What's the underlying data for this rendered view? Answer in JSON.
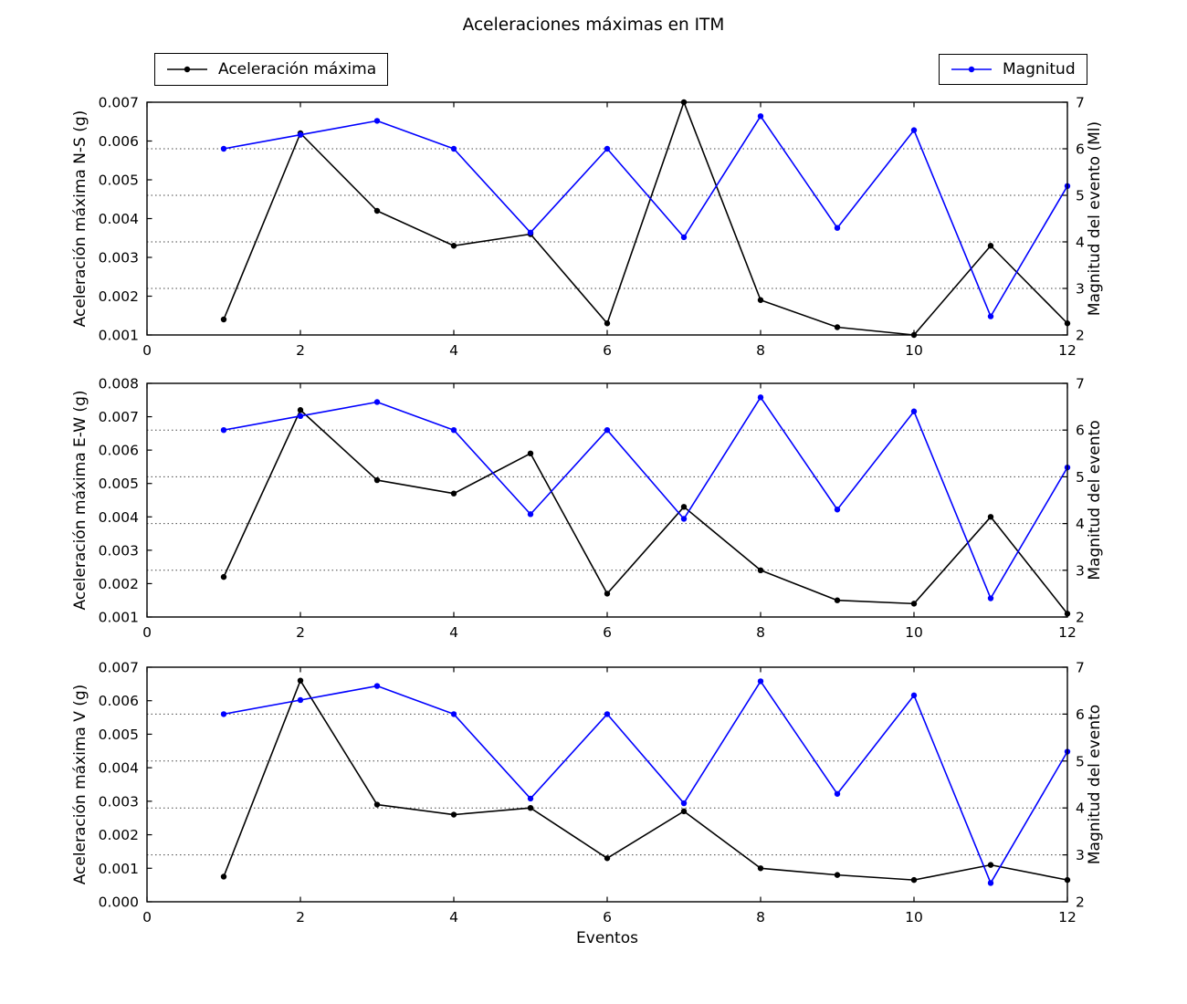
{
  "figure": {
    "title": "Aceleraciones máximas en ITM",
    "xlabel": "Eventos",
    "legend": [
      {
        "label": "Aceleración máxima",
        "color": "#000000",
        "marker": "dot-line"
      },
      {
        "label": "Magnitud",
        "color": "#0000ff",
        "marker": "dot-line"
      }
    ],
    "colors": {
      "acceleration_series": "#000000",
      "magnitude_series": "#0000ff",
      "grid": "#444444",
      "frame": "#000000",
      "background": "#ffffff"
    }
  },
  "chart_data": [
    {
      "type": "line",
      "title": "",
      "ylabel": "Aceleración máxima N-S (g)",
      "ylabel_right": "Magnitud del evento (Ml)",
      "xlabel": "",
      "x": [
        1,
        2,
        3,
        4,
        5,
        6,
        7,
        8,
        9,
        10,
        11,
        12
      ],
      "xlim": [
        0,
        12
      ],
      "xticks": [
        0,
        2,
        4,
        6,
        8,
        10,
        12
      ],
      "ylim": [
        0.001,
        0.007
      ],
      "yticks": [
        0.001,
        0.002,
        0.003,
        0.004,
        0.005,
        0.006,
        0.007
      ],
      "ylim_right": [
        2,
        7
      ],
      "yticks_right": [
        2,
        3,
        4,
        5,
        6,
        7
      ],
      "grid_right_values": [
        3,
        4,
        5,
        6
      ],
      "grid_style": "dotted-horizontal",
      "legend_position": "none",
      "series": [
        {
          "name": "Aceleración máxima",
          "axis": "left",
          "color": "#000000",
          "values": [
            0.0014,
            0.0062,
            0.0042,
            0.0033,
            0.0036,
            0.0013,
            0.007,
            0.0019,
            0.0012,
            0.001,
            0.0033,
            0.0013
          ]
        },
        {
          "name": "Magnitud",
          "axis": "right",
          "color": "#0000ff",
          "values": [
            6.0,
            6.3,
            6.6,
            6.0,
            4.2,
            6.0,
            4.1,
            6.7,
            4.3,
            6.4,
            2.4,
            5.2
          ]
        }
      ]
    },
    {
      "type": "line",
      "title": "",
      "ylabel": "Aceleración máxima E-W (g)",
      "ylabel_right": "Magnitud del evento",
      "xlabel": "",
      "x": [
        1,
        2,
        3,
        4,
        5,
        6,
        7,
        8,
        9,
        10,
        11,
        12
      ],
      "xlim": [
        0,
        12
      ],
      "xticks": [
        0,
        2,
        4,
        6,
        8,
        10,
        12
      ],
      "ylim": [
        0.001,
        0.008
      ],
      "yticks": [
        0.001,
        0.002,
        0.003,
        0.004,
        0.005,
        0.006,
        0.007,
        0.008
      ],
      "ylim_right": [
        2,
        7
      ],
      "yticks_right": [
        2,
        3,
        4,
        5,
        6,
        7
      ],
      "grid_right_values": [
        3,
        4,
        5,
        6
      ],
      "grid_style": "dotted-horizontal",
      "legend_position": "none",
      "series": [
        {
          "name": "Aceleración máxima",
          "axis": "left",
          "color": "#000000",
          "values": [
            0.0022,
            0.0072,
            0.0051,
            0.0047,
            0.0059,
            0.0017,
            0.0043,
            0.0024,
            0.0015,
            0.0014,
            0.004,
            0.0011
          ]
        },
        {
          "name": "Magnitud",
          "axis": "right",
          "color": "#0000ff",
          "values": [
            6.0,
            6.3,
            6.6,
            6.0,
            4.2,
            6.0,
            4.1,
            6.7,
            4.3,
            6.4,
            2.4,
            5.2
          ]
        }
      ]
    },
    {
      "type": "line",
      "title": "",
      "ylabel": "Aceleración máxima V (g)",
      "ylabel_right": "Magnitud del evento",
      "xlabel": "Eventos",
      "x": [
        1,
        2,
        3,
        4,
        5,
        6,
        7,
        8,
        9,
        10,
        11,
        12
      ],
      "xlim": [
        0,
        12
      ],
      "xticks": [
        0,
        2,
        4,
        6,
        8,
        10,
        12
      ],
      "ylim": [
        0.0,
        0.007
      ],
      "yticks": [
        0.0,
        0.001,
        0.002,
        0.003,
        0.004,
        0.005,
        0.006,
        0.007
      ],
      "ylim_right": [
        2,
        7
      ],
      "yticks_right": [
        2,
        3,
        4,
        5,
        6,
        7
      ],
      "grid_right_values": [
        3,
        4,
        5,
        6
      ],
      "grid_style": "dotted-horizontal",
      "legend_position": "none",
      "series": [
        {
          "name": "Aceleración máxima",
          "axis": "left",
          "color": "#000000",
          "values": [
            0.00075,
            0.0066,
            0.0029,
            0.0026,
            0.0028,
            0.0013,
            0.0027,
            0.001,
            0.0008,
            0.00065,
            0.0011,
            0.00065
          ]
        },
        {
          "name": "Magnitud",
          "axis": "right",
          "color": "#0000ff",
          "values": [
            6.0,
            6.3,
            6.6,
            6.0,
            4.2,
            6.0,
            4.1,
            6.7,
            4.3,
            6.4,
            2.4,
            5.2
          ]
        }
      ]
    }
  ]
}
